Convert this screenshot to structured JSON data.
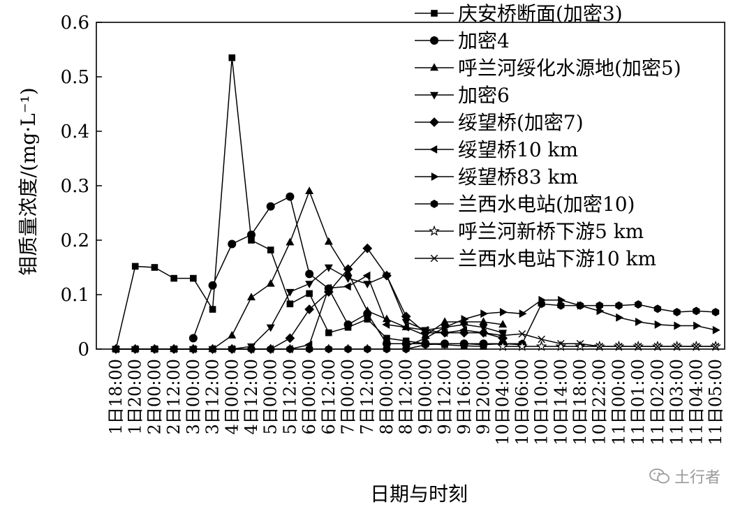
{
  "chart_data": {
    "type": "line",
    "ylabel": "钼质量浓度/(mg·L⁻¹)",
    "xlabel": "日期与时刻",
    "ylim": [
      0,
      0.6
    ],
    "yticks": [
      "0",
      "0.1",
      "0.2",
      "0.3",
      "0.4",
      "0.5",
      "0.6"
    ],
    "ytick_values": [
      0,
      0.1,
      0.2,
      0.3,
      0.4,
      0.5,
      0.6
    ],
    "grid": false,
    "legend_position": "top-right",
    "categories": [
      "1日18:00",
      "1日20:00",
      "2日00:00",
      "2日12:00",
      "3日00:00",
      "3日12:00",
      "4日00:00",
      "4日12:00",
      "5日00:00",
      "5日12:00",
      "6日00:00",
      "6日12:00",
      "7日00:00",
      "7日12:00",
      "8日00:00",
      "8日12:00",
      "9日00:00",
      "9日12:00",
      "9日16:00",
      "9日20:00",
      "10日04:00",
      "10日06:00",
      "10日10:00",
      "10日14:00",
      "10日18:00",
      "10日22:00",
      "11日00:00",
      "11日01:00",
      "11日02:00",
      "11日03:00",
      "11日04:00",
      "11日05:00"
    ],
    "series": [
      {
        "name": "庆安桥断面(加密3)",
        "marker": "square",
        "values": [
          0,
          0.152,
          0.15,
          0.13,
          0.13,
          0.073,
          0.535,
          0.2,
          0.182,
          0.083,
          0.102,
          0.03,
          0.04,
          0.055,
          0.02,
          0.015,
          0.01,
          0.008,
          0.006,
          0.005,
          null,
          null,
          null,
          null,
          null,
          null,
          null,
          null,
          null,
          null,
          null,
          null
        ]
      },
      {
        "name": "加密4",
        "marker": "circle",
        "values": [
          null,
          null,
          null,
          null,
          0.02,
          0.117,
          0.193,
          0.21,
          0.262,
          0.28,
          0.138,
          0.111,
          0.045,
          0.065,
          0.01,
          0.01,
          0.01,
          0.01,
          0.01,
          0.01,
          0.01,
          0.008,
          null,
          null,
          null,
          null,
          null,
          null,
          null,
          null,
          null,
          null
        ]
      },
      {
        "name": "呼兰河绥化水源地(加密5)",
        "marker": "triangle-up",
        "values": [
          0,
          0,
          0,
          0,
          0,
          0,
          0.025,
          0.095,
          0.12,
          0.196,
          0.29,
          0.197,
          0.14,
          0.07,
          0.055,
          0.04,
          0.025,
          0.05,
          0.05,
          0.05,
          0.045,
          null,
          null,
          null,
          null,
          null,
          null,
          null,
          null,
          null,
          null,
          null
        ]
      },
      {
        "name": "加密6",
        "marker": "triangle-down",
        "values": [
          0,
          0,
          0,
          0,
          0,
          0,
          0,
          0.005,
          0.04,
          0.105,
          0.12,
          0.15,
          0.13,
          0.12,
          0.135,
          0.05,
          0.035,
          0.04,
          0.045,
          0.04,
          0.03,
          null,
          null,
          null,
          null,
          null,
          null,
          null,
          null,
          null,
          null,
          null
        ]
      },
      {
        "name": "绥望桥(加密7)",
        "marker": "diamond",
        "values": [
          0,
          0,
          0,
          0,
          0,
          0,
          0,
          0,
          0,
          0.02,
          0.073,
          0.105,
          0.147,
          0.185,
          0.135,
          0.06,
          0.03,
          0.03,
          0.03,
          0.03,
          0.02,
          null,
          null,
          null,
          null,
          null,
          null,
          null,
          null,
          null,
          null,
          null
        ]
      },
      {
        "name": "绥望桥10 km",
        "marker": "triangle-left",
        "values": [
          0,
          0,
          0,
          0,
          0,
          0,
          0,
          0,
          0,
          0,
          0.008,
          0.112,
          0.115,
          0.135,
          0.045,
          0.04,
          0.035,
          0.03,
          0.035,
          0.03,
          0.025,
          null,
          null,
          null,
          null,
          null,
          null,
          null,
          null,
          null,
          null,
          null
        ]
      },
      {
        "name": "绥望桥83 km",
        "marker": "triangle-right",
        "values": [
          null,
          null,
          null,
          null,
          null,
          null,
          null,
          null,
          null,
          null,
          null,
          null,
          null,
          null,
          null,
          0.005,
          0.02,
          0.04,
          0.055,
          0.065,
          0.068,
          0.065,
          0.09,
          0.09,
          0.08,
          0.07,
          0.058,
          0.05,
          0.045,
          0.043,
          0.043,
          0.035
        ]
      },
      {
        "name": "兰西水电站(加密10)",
        "marker": "hexagon",
        "values": [
          0,
          0,
          0,
          0,
          0,
          0,
          0,
          0,
          0,
          0,
          0,
          0,
          0,
          0,
          0,
          0,
          0.008,
          0.01,
          0.01,
          0.008,
          0.01,
          0.01,
          0.083,
          0.08,
          0.08,
          0.08,
          0.08,
          0.082,
          0.074,
          0.068,
          0.07,
          0.068
        ]
      },
      {
        "name": "呼兰河新桥下游5 km",
        "marker": "star",
        "values": [
          null,
          null,
          null,
          null,
          null,
          null,
          null,
          null,
          null,
          null,
          null,
          null,
          null,
          null,
          null,
          null,
          null,
          null,
          null,
          null,
          0.005,
          0.005,
          0.005,
          0.005,
          0.005,
          0.005,
          0.005,
          0.005,
          0.005,
          0.005,
          0.005,
          0.005
        ]
      },
      {
        "name": "兰西水电站下游10 km",
        "marker": "x",
        "values": [
          null,
          null,
          null,
          null,
          null,
          null,
          null,
          null,
          null,
          null,
          null,
          null,
          null,
          null,
          null,
          null,
          null,
          null,
          null,
          null,
          0.025,
          0.028,
          0.018,
          0.01,
          0.01,
          0.005,
          0.005,
          0.005,
          0.005,
          0.005,
          0.005,
          0.005
        ]
      }
    ]
  },
  "watermark": {
    "text": "土行者",
    "icon": "wechat-icon"
  }
}
